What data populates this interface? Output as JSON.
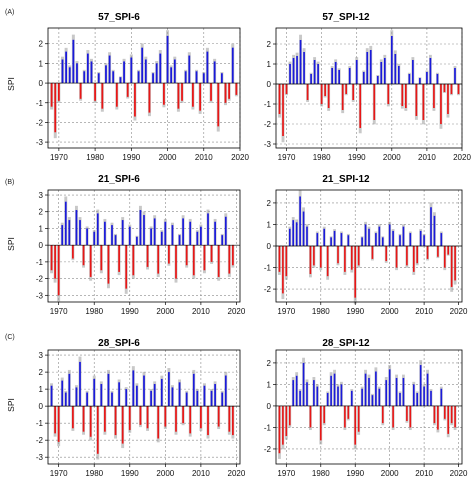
{
  "panel_labels": [
    "(A)",
    "(B)",
    "(C)"
  ],
  "colors": {
    "positive": "#1a1adb",
    "negative": "#e81616",
    "envelope": "#9a9a9a",
    "grid": "#8a8a8a"
  },
  "chart_data": [
    {
      "type": "area",
      "title": "57_SPI-6",
      "xlabel": "",
      "ylabel": "SPI",
      "xlim": [
        1967,
        2020
      ],
      "ylim": [
        -3.3,
        2.8
      ],
      "xticks": [
        1970,
        1980,
        1990,
        2000,
        2010,
        2020
      ],
      "yticks": [
        -3,
        -2,
        -1,
        0,
        1,
        2
      ],
      "grid": true,
      "fill": "positive blue / negative red",
      "x": [
        1968,
        1969,
        1970,
        1971,
        1972,
        1973,
        1974,
        1975,
        1976,
        1977,
        1978,
        1979,
        1980,
        1981,
        1982,
        1983,
        1984,
        1985,
        1986,
        1987,
        1988,
        1989,
        1990,
        1991,
        1992,
        1993,
        1994,
        1995,
        1996,
        1997,
        1998,
        1999,
        2000,
        2001,
        2002,
        2003,
        2004,
        2005,
        2006,
        2007,
        2008,
        2009,
        2010,
        2011,
        2012,
        2013,
        2014,
        2015,
        2016,
        2017,
        2018,
        2019
      ],
      "values": [
        -1.2,
        -2.5,
        -0.9,
        1.2,
        1.6,
        0.8,
        2.2,
        1.0,
        -0.8,
        0.6,
        1.5,
        1.1,
        -0.9,
        0.5,
        -1.3,
        0.9,
        1.4,
        0.6,
        -1.2,
        0.3,
        1.1,
        -0.7,
        1.3,
        -1.7,
        0.6,
        1.8,
        1.2,
        -1.5,
        0.5,
        1.0,
        1.5,
        -1.1,
        2.4,
        0.8,
        1.2,
        -1.3,
        -0.9,
        0.6,
        1.4,
        -1.2,
        0.6,
        -1.4,
        0.5,
        1.6,
        -0.9,
        1.1,
        -2.2,
        0.5,
        -1.0,
        -0.8,
        1.8,
        -0.6
      ]
    },
    {
      "type": "area",
      "title": "57_SPI-12",
      "xlabel": "",
      "ylabel": "",
      "xlim": [
        1967,
        2020
      ],
      "ylim": [
        -3.2,
        2.8
      ],
      "xticks": [
        1970,
        1980,
        1990,
        2000,
        2010,
        2020
      ],
      "yticks": [
        -3,
        -2,
        -1,
        0,
        1,
        2
      ],
      "grid": true,
      "fill": "positive blue / negative red",
      "x": [
        1968,
        1969,
        1970,
        1971,
        1972,
        1973,
        1974,
        1975,
        1976,
        1977,
        1978,
        1979,
        1980,
        1981,
        1982,
        1983,
        1984,
        1985,
        1986,
        1987,
        1988,
        1989,
        1990,
        1991,
        1992,
        1993,
        1994,
        1995,
        1996,
        1997,
        1998,
        1999,
        2000,
        2001,
        2002,
        2003,
        2004,
        2005,
        2006,
        2007,
        2008,
        2009,
        2010,
        2011,
        2012,
        2013,
        2014,
        2015,
        2016,
        2017,
        2018,
        2019
      ],
      "values": [
        -1.5,
        -2.6,
        -0.5,
        1.0,
        1.3,
        1.4,
        2.2,
        1.6,
        -0.8,
        0.5,
        1.2,
        1.0,
        -1.0,
        -0.6,
        -1.2,
        0.8,
        1.1,
        0.7,
        -1.3,
        -0.5,
        0.8,
        -0.8,
        1.2,
        -2.2,
        0.6,
        1.6,
        1.7,
        -1.8,
        0.4,
        1.1,
        1.3,
        -1.0,
        2.4,
        1.5,
        0.9,
        -1.1,
        -1.2,
        0.5,
        1.2,
        -1.6,
        0.3,
        -1.8,
        0.6,
        1.3,
        -1.2,
        0.5,
        -2.0,
        -0.4,
        -1.5,
        -0.5,
        0.8,
        -0.5
      ]
    },
    {
      "type": "area",
      "title": "21_SPI-6",
      "xlabel": "",
      "ylabel": "SPI",
      "xlim": [
        1967,
        2021
      ],
      "ylim": [
        -3.4,
        3.3
      ],
      "xticks": [
        1970,
        1980,
        1990,
        2000,
        2010,
        2020
      ],
      "yticks": [
        -3,
        -2,
        -1,
        0,
        1,
        2,
        3
      ],
      "grid": true,
      "fill": "positive blue / negative red",
      "x": [
        1968,
        1969,
        1970,
        1971,
        1972,
        1973,
        1974,
        1975,
        1976,
        1977,
        1978,
        1979,
        1980,
        1981,
        1982,
        1983,
        1984,
        1985,
        1986,
        1987,
        1988,
        1989,
        1990,
        1991,
        1992,
        1993,
        1994,
        1995,
        1996,
        1997,
        1998,
        1999,
        2000,
        2001,
        2002,
        2003,
        2004,
        2005,
        2006,
        2007,
        2008,
        2009,
        2010,
        2011,
        2012,
        2013,
        2014,
        2015,
        2016,
        2017,
        2018,
        2019
      ],
      "values": [
        -1.5,
        -2.0,
        -3.0,
        1.2,
        2.6,
        1.5,
        -0.8,
        2.1,
        1.5,
        -1.2,
        1.0,
        -1.9,
        0.8,
        1.9,
        -1.5,
        1.4,
        -2.3,
        1.2,
        0.6,
        -1.6,
        1.5,
        -2.6,
        1.1,
        -1.8,
        0.5,
        2.1,
        1.8,
        -1.3,
        1.0,
        1.6,
        -1.7,
        0.8,
        1.4,
        -1.1,
        1.2,
        -2.0,
        0.6,
        1.6,
        -1.2,
        1.4,
        -1.8,
        0.8,
        1.1,
        -1.5,
        1.9,
        -1.0,
        1.4,
        -1.9,
        0.6,
        1.7,
        -1.7,
        -1.2
      ]
    },
    {
      "type": "area",
      "title": "21_SPI-12",
      "xlabel": "",
      "ylabel": "",
      "xlim": [
        1967,
        2021
      ],
      "ylim": [
        -2.6,
        2.6
      ],
      "xticks": [
        1970,
        1980,
        1990,
        2000,
        2010,
        2020
      ],
      "yticks": [
        -2,
        -1,
        0,
        1,
        2
      ],
      "grid": true,
      "fill": "positive blue / negative red",
      "x": [
        1968,
        1969,
        1970,
        1971,
        1972,
        1973,
        1974,
        1975,
        1976,
        1977,
        1978,
        1979,
        1980,
        1981,
        1982,
        1983,
        1984,
        1985,
        1986,
        1987,
        1988,
        1989,
        1990,
        1991,
        1992,
        1993,
        1994,
        1995,
        1996,
        1997,
        1998,
        1999,
        2000,
        2001,
        2002,
        2003,
        2004,
        2005,
        2006,
        2007,
        2008,
        2009,
        2010,
        2011,
        2012,
        2013,
        2014,
        2015,
        2016,
        2017,
        2018,
        2019
      ],
      "values": [
        -1.2,
        -2.2,
        -1.4,
        0.8,
        1.2,
        1.1,
        2.3,
        1.6,
        0.9,
        -1.3,
        -0.9,
        0.6,
        -1.0,
        0.8,
        -1.4,
        0.4,
        0.7,
        -0.8,
        0.6,
        -1.2,
        0.5,
        -1.1,
        -2.4,
        -0.9,
        0.4,
        1.0,
        0.8,
        -0.6,
        0.6,
        0.9,
        0.4,
        -0.7,
        1.0,
        0.7,
        -1.0,
        0.5,
        0.9,
        -0.9,
        0.6,
        -1.2,
        -0.8,
        0.7,
        0.5,
        -0.6,
        1.8,
        1.4,
        -0.5,
        0.6,
        -1.0,
        -0.4,
        -1.9,
        -1.6
      ]
    },
    {
      "type": "area",
      "title": "28_SPI-6",
      "xlabel": "",
      "ylabel": "SPI",
      "xlim": [
        1967,
        2021
      ],
      "ylim": [
        -3.4,
        3.3
      ],
      "xticks": [
        1970,
        1980,
        1990,
        2000,
        2010,
        2020
      ],
      "yticks": [
        -3,
        -2,
        -1,
        0,
        1,
        2,
        3
      ],
      "grid": true,
      "fill": "positive blue / negative red",
      "x": [
        1968,
        1969,
        1970,
        1971,
        1972,
        1973,
        1974,
        1975,
        1976,
        1977,
        1978,
        1979,
        1980,
        1981,
        1982,
        1983,
        1984,
        1985,
        1986,
        1987,
        1988,
        1989,
        1990,
        1991,
        1992,
        1993,
        1994,
        1995,
        1996,
        1997,
        1998,
        1999,
        2000,
        2001,
        2002,
        2003,
        2004,
        2005,
        2006,
        2007,
        2008,
        2009,
        2010,
        2011,
        2012,
        2013,
        2014,
        2015,
        2016,
        2017,
        2018,
        2019
      ],
      "values": [
        1.2,
        -1.6,
        -2.1,
        1.5,
        0.8,
        1.9,
        -1.3,
        1.1,
        2.6,
        -1.5,
        0.8,
        -1.8,
        1.6,
        -2.8,
        1.3,
        -1.5,
        1.9,
        0.8,
        -1.7,
        1.4,
        -2.2,
        1.0,
        -1.4,
        2.1,
        1.2,
        -1.1,
        1.8,
        -1.3,
        0.9,
        1.3,
        -1.9,
        1.6,
        -1.2,
        2.0,
        1.1,
        -1.5,
        1.4,
        -1.0,
        0.8,
        -1.6,
        1.9,
        0.9,
        -1.3,
        1.2,
        -1.7,
        0.9,
        1.3,
        -1.2,
        0.8,
        1.8,
        -1.5,
        -1.7
      ]
    },
    {
      "type": "area",
      "title": "28_SPI-12",
      "xlabel": "",
      "ylabel": "",
      "xlim": [
        1967,
        2021
      ],
      "ylim": [
        -2.7,
        2.6
      ],
      "xticks": [
        1970,
        1980,
        1990,
        2000,
        2010,
        2020
      ],
      "yticks": [
        -2,
        -1,
        0,
        1,
        2
      ],
      "grid": true,
      "fill": "positive blue / negative red",
      "x": [
        1968,
        1969,
        1970,
        1971,
        1972,
        1973,
        1974,
        1975,
        1976,
        1977,
        1978,
        1979,
        1980,
        1981,
        1982,
        1983,
        1984,
        1985,
        1986,
        1987,
        1988,
        1989,
        1990,
        1991,
        1992,
        1993,
        1994,
        1995,
        1996,
        1997,
        1998,
        1999,
        2000,
        2001,
        2002,
        2003,
        2004,
        2005,
        2006,
        2007,
        2008,
        2009,
        2010,
        2011,
        2012,
        2013,
        2014,
        2015,
        2016,
        2017,
        2018,
        2019
      ],
      "values": [
        -2.2,
        -1.8,
        -1.4,
        -0.9,
        1.2,
        1.4,
        0.7,
        2.0,
        1.1,
        -1.0,
        1.2,
        0.9,
        -1.6,
        -0.8,
        0.6,
        1.4,
        1.5,
        0.9,
        1.0,
        -1.0,
        -0.6,
        0.7,
        -1.8,
        -1.2,
        0.8,
        1.5,
        1.3,
        0.5,
        1.6,
        0.8,
        -0.8,
        1.2,
        1.7,
        -1.0,
        1.3,
        0.6,
        1.3,
        -0.7,
        -1.0,
        1.0,
        0.6,
        1.9,
        0.9,
        1.5,
        0.7,
        -0.8,
        -1.1,
        0.8,
        -0.6,
        -1.3,
        -0.8,
        -1.0
      ]
    }
  ]
}
